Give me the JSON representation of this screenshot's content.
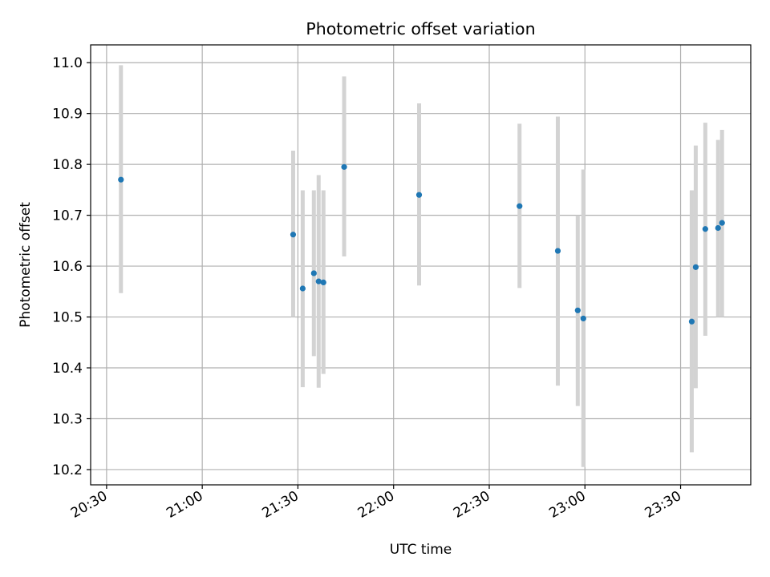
{
  "chart_data": {
    "type": "scatter",
    "title": "Photometric offset variation",
    "xlabel": "UTC time",
    "ylabel": "Photometric offset",
    "x_tick_labels": [
      "20:30",
      "21:00",
      "21:30",
      "22:00",
      "22:30",
      "23:00",
      "23:30"
    ],
    "y_tick_labels": [
      "10.2",
      "10.3",
      "10.4",
      "10.5",
      "10.6",
      "10.7",
      "10.8",
      "10.9",
      "11.0"
    ],
    "xlim": [
      "20:25",
      "23:52"
    ],
    "ylim": [
      10.17,
      11.035
    ],
    "grid": true,
    "colors": {
      "points": "#1f77b4",
      "error_bars": "#d3d3d3",
      "grid": "#b0b0b0"
    },
    "points": [
      {
        "x": "20:34:30",
        "y": 10.77,
        "ylow": 10.547,
        "yhigh": 10.995
      },
      {
        "x": "21:28:30",
        "y": 10.662,
        "ylow": 10.5,
        "yhigh": 10.827
      },
      {
        "x": "21:31:30",
        "y": 10.556,
        "ylow": 10.362,
        "yhigh": 10.749
      },
      {
        "x": "21:35:00",
        "y": 10.586,
        "ylow": 10.423,
        "yhigh": 10.749
      },
      {
        "x": "21:36:30",
        "y": 10.57,
        "ylow": 10.361,
        "yhigh": 10.779
      },
      {
        "x": "21:38:00",
        "y": 10.568,
        "ylow": 10.388,
        "yhigh": 10.749
      },
      {
        "x": "21:44:30",
        "y": 10.795,
        "ylow": 10.619,
        "yhigh": 10.973
      },
      {
        "x": "22:08:00",
        "y": 10.74,
        "ylow": 10.562,
        "yhigh": 10.92
      },
      {
        "x": "22:39:30",
        "y": 10.718,
        "ylow": 10.557,
        "yhigh": 10.88
      },
      {
        "x": "22:51:30",
        "y": 10.63,
        "ylow": 10.365,
        "yhigh": 10.894
      },
      {
        "x": "22:57:45",
        "y": 10.513,
        "ylow": 10.325,
        "yhigh": 10.7
      },
      {
        "x": "22:59:30",
        "y": 10.497,
        "ylow": 10.205,
        "yhigh": 10.79
      },
      {
        "x": "23:33:30",
        "y": 10.491,
        "ylow": 10.234,
        "yhigh": 10.749
      },
      {
        "x": "23:34:45",
        "y": 10.598,
        "ylow": 10.36,
        "yhigh": 10.837
      },
      {
        "x": "23:37:45",
        "y": 10.673,
        "ylow": 10.463,
        "yhigh": 10.882
      },
      {
        "x": "23:41:45",
        "y": 10.675,
        "ylow": 10.5,
        "yhigh": 10.848
      },
      {
        "x": "23:43:00",
        "y": 10.685,
        "ylow": 10.5,
        "yhigh": 10.868
      }
    ]
  }
}
